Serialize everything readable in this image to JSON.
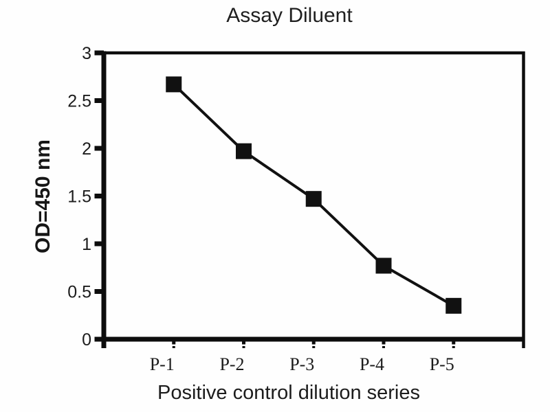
{
  "chart_data": {
    "type": "line",
    "title": "Assay Diluent",
    "xlabel": "Positive control dilution series",
    "ylabel": "OD=450 nm",
    "categories": [
      "P-1",
      "P-2",
      "P-3",
      "P-4",
      "P-5"
    ],
    "values": [
      2.67,
      1.97,
      1.47,
      0.77,
      0.35
    ],
    "ylim": [
      0,
      3
    ],
    "yticks": [
      0,
      0.5,
      1,
      1.5,
      2,
      2.5,
      3
    ],
    "ytick_labels": [
      "0",
      "0.5",
      "1",
      "1.5",
      "2",
      "2.5",
      "3"
    ],
    "grid": false,
    "legend": "none",
    "marker": "filled-square",
    "line_color": "#111111",
    "marker_color": "#111111",
    "axis_color": "#0d0d0d",
    "background_color": "#fefefe"
  }
}
